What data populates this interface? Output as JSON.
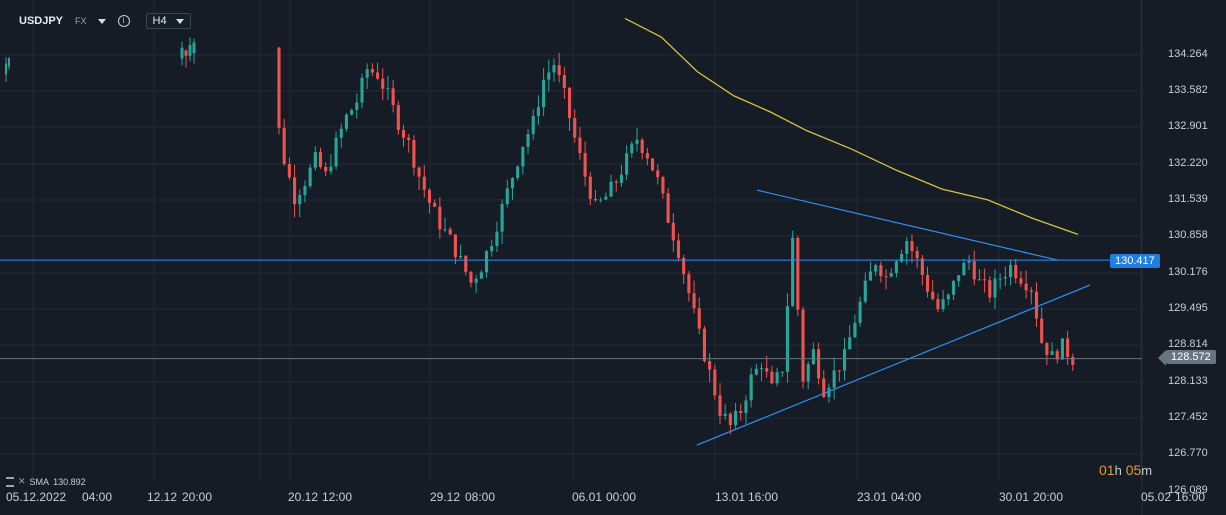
{
  "toolbar": {
    "symbol": "USDJPY",
    "market": "FX",
    "timeframe": "H4"
  },
  "indicator": {
    "name": "SMA",
    "value": "130.892"
  },
  "countdown": {
    "hours": "01",
    "hours_unit": "h",
    "minutes": "05",
    "minutes_unit": "m"
  },
  "x_axis_labels": [
    "05.12.2022",
    "04:00",
    "12.12",
    "20:00",
    "20.12",
    "12:00",
    "29.12",
    "08:00",
    "06.01",
    "00:00",
    "13.01",
    "16:00",
    "23.01",
    "04:00",
    "30.01",
    "20:00",
    "05.02",
    "16:00"
  ],
  "y_axis_labels": [
    "134.264",
    "133.582",
    "132.901",
    "132.220",
    "131.539",
    "130.858",
    "130.176",
    "129.495",
    "128.814",
    "128.133",
    "127.452",
    "126.770",
    "126.089"
  ],
  "price_tags": {
    "horizontal_line": "130.417",
    "last_price": "128.572"
  },
  "colors": {
    "background": "#151c25",
    "grid": "#202a36",
    "up": "#26a69a",
    "down": "#ef5350",
    "sma": "#d9c13c",
    "trendline": "#2f8ff0",
    "last_price_line": "#6a7480"
  },
  "chart_data": {
    "type": "candlestick",
    "title": "USDJPY H4",
    "ylim": [
      126.089,
      134.6
    ],
    "grid": true,
    "series": [
      {
        "name": "USDJPY",
        "type": "candlestick",
        "close_path": [
          134.05,
          134.2,
          134.3,
          134.35,
          134.4,
          133.4,
          132.3,
          131.6,
          131.9,
          132.3,
          132.0,
          132.6,
          133.1,
          133.4,
          134.0,
          133.9,
          133.5,
          133.0,
          132.6,
          132.0,
          131.5,
          131.1,
          130.8,
          130.4,
          130.0,
          130.3,
          130.8,
          131.4,
          132.0,
          132.6,
          133.0,
          133.8,
          134.1,
          133.5,
          132.7,
          132.0,
          131.4,
          131.6,
          131.9,
          132.3,
          132.7,
          132.4,
          131.9,
          131.2,
          130.6,
          129.8,
          129.0,
          128.3,
          127.6,
          127.3,
          127.6,
          128.2,
          128.5,
          128.0,
          128.4,
          130.8,
          128.2,
          128.7,
          128.0,
          128.3,
          128.6,
          129.3,
          129.9,
          130.4,
          130.1,
          130.5,
          130.8,
          130.4,
          129.9,
          129.5,
          129.7,
          130.2,
          130.4,
          130.0,
          129.8,
          130.1,
          130.3,
          130.1,
          129.9,
          128.9,
          128.6,
          128.8,
          128.57
        ]
      },
      {
        "name": "SMA",
        "type": "line",
        "points": [
          [
            0,
            134.95
          ],
          [
            0.08,
            134.6
          ],
          [
            0.16,
            133.95
          ],
          [
            0.24,
            133.5
          ],
          [
            0.32,
            133.2
          ],
          [
            0.4,
            132.85
          ],
          [
            0.5,
            132.5
          ],
          [
            0.6,
            132.1
          ],
          [
            0.7,
            131.75
          ],
          [
            0.8,
            131.55
          ],
          [
            0.9,
            131.2
          ],
          [
            1.0,
            130.9
          ]
        ]
      }
    ],
    "overlays": [
      {
        "kind": "horizontal_line",
        "price": 130.417
      },
      {
        "kind": "horizontal_line",
        "price": 128.572
      },
      {
        "kind": "trendline",
        "from": [
          0.0,
          131.73
        ],
        "to": [
          1.0,
          130.417
        ]
      },
      {
        "kind": "trendline",
        "from": [
          0.0,
          126.95
        ],
        "to": [
          1.0,
          129.95
        ]
      }
    ]
  }
}
